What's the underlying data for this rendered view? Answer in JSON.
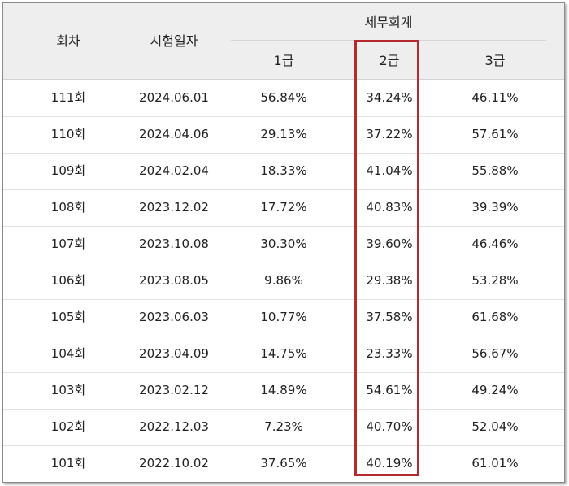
{
  "header": {
    "round": "회차",
    "date": "시험일자",
    "group": "세무회계",
    "grade1": "1급",
    "grade2": "2급",
    "grade3": "3급"
  },
  "rows": [
    {
      "round": "111회",
      "date": "2024.06.01",
      "g1": "56.84%",
      "g2": "34.24%",
      "g3": "46.11%"
    },
    {
      "round": "110회",
      "date": "2024.04.06",
      "g1": "29.13%",
      "g2": "37.22%",
      "g3": "57.61%"
    },
    {
      "round": "109회",
      "date": "2024.02.04",
      "g1": "18.33%",
      "g2": "41.04%",
      "g3": "55.88%"
    },
    {
      "round": "108회",
      "date": "2023.12.02",
      "g1": "17.72%",
      "g2": "40.83%",
      "g3": "39.39%"
    },
    {
      "round": "107회",
      "date": "2023.10.08",
      "g1": "30.30%",
      "g2": "39.60%",
      "g3": "46.46%"
    },
    {
      "round": "106회",
      "date": "2023.08.05",
      "g1": "9.86%",
      "g2": "29.38%",
      "g3": "53.28%"
    },
    {
      "round": "105회",
      "date": "2023.06.03",
      "g1": "10.77%",
      "g2": "37.58%",
      "g3": "61.68%"
    },
    {
      "round": "104회",
      "date": "2023.04.09",
      "g1": "14.75%",
      "g2": "23.33%",
      "g3": "56.67%"
    },
    {
      "round": "103회",
      "date": "2023.02.12",
      "g1": "14.89%",
      "g2": "54.61%",
      "g3": "49.24%"
    },
    {
      "round": "102회",
      "date": "2022.12.03",
      "g1": "7.23%",
      "g2": "40.70%",
      "g3": "52.04%"
    },
    {
      "round": "101회",
      "date": "2022.10.02",
      "g1": "37.65%",
      "g2": "40.19%",
      "g3": "61.01%"
    }
  ],
  "colors": {
    "highlight": "#b52a2f",
    "header_bg": "#eeeeee"
  }
}
